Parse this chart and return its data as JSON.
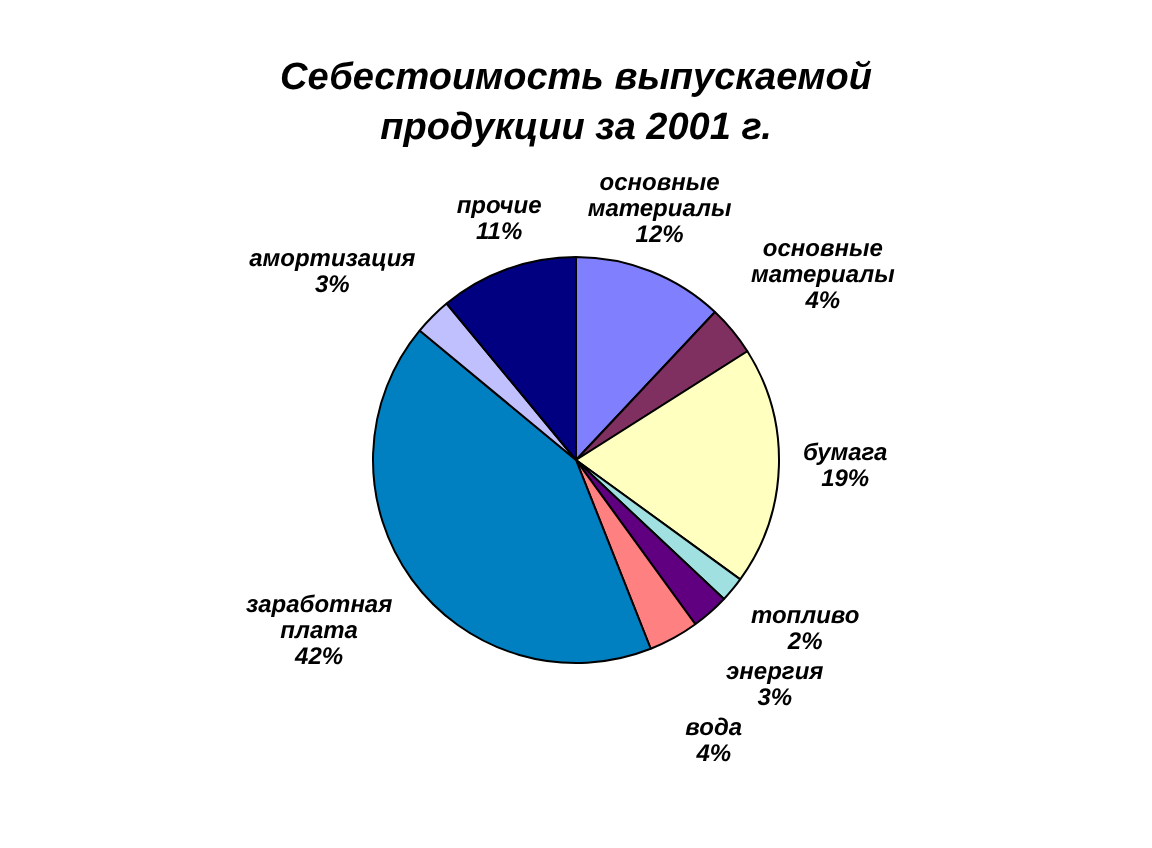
{
  "chart_data": {
    "type": "pie",
    "title": "Себестоимость выпускаемой продукции за 2001 г.",
    "categories": [
      "основные материалы",
      "основные материалы",
      "бумага",
      "топливо",
      "энергия",
      "вода",
      "заработная плата",
      "амортизация",
      "прочие"
    ],
    "values": [
      12,
      4,
      19,
      2,
      3,
      4,
      42,
      3,
      11
    ],
    "value_labels": [
      "12%",
      "4%",
      "19%",
      "2%",
      "3%",
      "4%",
      "42%",
      "3%",
      "11%"
    ],
    "colors": [
      "#8080ff",
      "#803060",
      "#ffffc0",
      "#a0e0e0",
      "#600080",
      "#ff8080",
      "#0080c0",
      "#c0c0ff",
      "#000080"
    ]
  }
}
